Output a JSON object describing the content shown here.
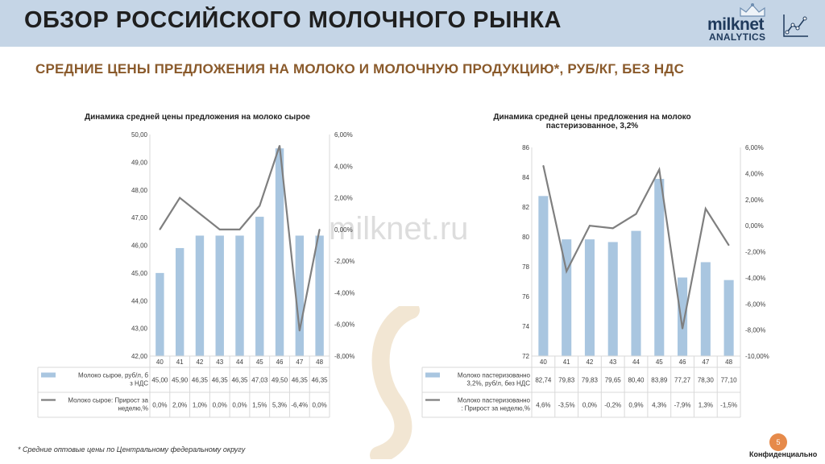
{
  "header": {
    "title": "ОБЗОР РОССИЙСКОГО МОЛОЧНОГО РЫНКА",
    "logo_name": "milknet",
    "logo_sub": "ANALYTICS"
  },
  "subtitle": "СРЕДНИЕ ЦЕНЫ ПРЕДЛОЖЕНИЯ НА МОЛОКО И МОЛОЧНУЮ ПРОДУКЦИЮ*, РУБ/КГ, БЕЗ НДС",
  "watermark": "milknet.ru",
  "footnote": "* Средние оптовые цены по Центральному федеральному округу",
  "confidential": "Конфиденциально",
  "page_number": "5",
  "colors": {
    "bar": "#a9c6e0",
    "line": "#7f7f7f",
    "header": "#c5d5e6",
    "subtitle": "#8a5a2b"
  },
  "chart_data": [
    {
      "type": "bar",
      "title": "Динамика средней цены предложения на молоко сырое",
      "categories": [
        "40",
        "41",
        "42",
        "43",
        "44",
        "45",
        "46",
        "47",
        "48"
      ],
      "ylim": [
        42,
        50
      ],
      "y_ticks": [
        "42,00",
        "43,00",
        "44,00",
        "45,00",
        "46,00",
        "47,00",
        "48,00",
        "49,00",
        "50,00"
      ],
      "y2lim": [
        -8,
        6
      ],
      "y2_ticks": [
        "-8,00%",
        "-6,00%",
        "-4,00%",
        "-2,00%",
        "0,00%",
        "2,00%",
        "4,00%",
        "6,00%"
      ],
      "series": [
        {
          "name": "Молоко сырое, руб/л, без НДС",
          "kind": "bar",
          "axis": "left",
          "values": [
            45.0,
            45.9,
            46.35,
            46.35,
            46.35,
            47.03,
            49.5,
            46.35,
            46.35
          ],
          "labels": [
            "45,00",
            "45,90",
            "46,35",
            "46,35",
            "46,35",
            "47,03",
            "49,50",
            "46,35",
            "46,35"
          ]
        },
        {
          "name": "Молоко сырое: Прирост за неделю,%",
          "kind": "line",
          "axis": "right",
          "values": [
            0.0,
            2.0,
            1.0,
            0.0,
            0.0,
            1.5,
            5.3,
            -6.4,
            0.0
          ],
          "labels": [
            "0,0%",
            "2,0%",
            "1,0%",
            "0,0%",
            "0,0%",
            "1,5%",
            "5,3%",
            "-6,4%",
            "0,0%"
          ]
        }
      ]
    },
    {
      "type": "bar",
      "title": "Динамика средней цены предложения на молоко пастеризованное, 3,2%",
      "categories": [
        "40",
        "41",
        "42",
        "43",
        "44",
        "45",
        "46",
        "47",
        "48"
      ],
      "ylim": [
        72,
        86
      ],
      "y_ticks": [
        "72",
        "74",
        "76",
        "78",
        "80",
        "82",
        "84",
        "86"
      ],
      "y2lim": [
        -10,
        6
      ],
      "y2_ticks": [
        "-10,00%",
        "-8,00%",
        "-6,00%",
        "-4,00%",
        "-2,00%",
        "0,00%",
        "2,00%",
        "4,00%",
        "6,00%"
      ],
      "series": [
        {
          "name": "Молоко пастеризованное 3,2%, руб/л, без НДС",
          "kind": "bar",
          "axis": "left",
          "values": [
            82.74,
            79.83,
            79.83,
            79.65,
            80.4,
            83.89,
            77.27,
            78.3,
            77.1
          ],
          "labels": [
            "82,74",
            "79,83",
            "79,83",
            "79,65",
            "80,40",
            "83,89",
            "77,27",
            "78,30",
            "77,10"
          ]
        },
        {
          "name": "Молоко пастеризованное: Прирост за неделю,%",
          "kind": "line",
          "axis": "right",
          "values": [
            4.6,
            -3.5,
            0.0,
            -0.2,
            0.9,
            4.3,
            -7.9,
            1.3,
            -1.5
          ],
          "labels": [
            "4,6%",
            "-3,5%",
            "0,0%",
            "-0,2%",
            "0,9%",
            "4,3%",
            "-7,9%",
            "1,3%",
            "-1,5%"
          ]
        }
      ]
    }
  ]
}
